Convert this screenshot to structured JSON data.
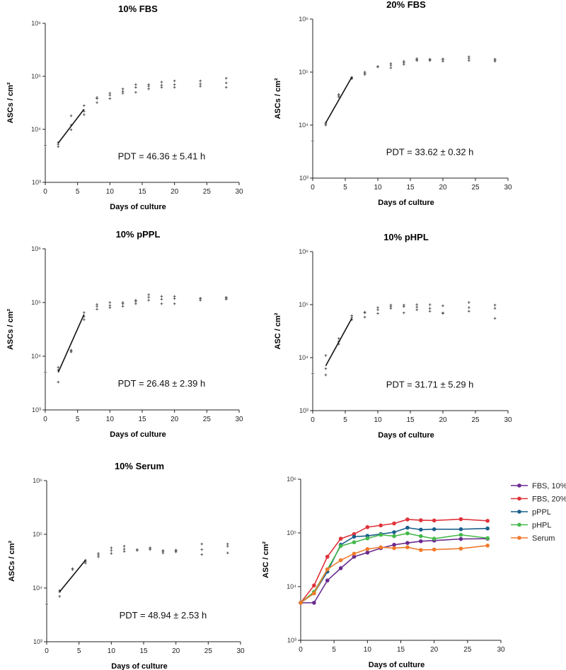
{
  "chart_data": [
    {
      "type": "scatter",
      "title": "10% FBS",
      "xlabel": "Days of culture",
      "ylabel": "ASCs / cm²",
      "xlim": [
        0,
        30
      ],
      "ylim": [
        1000,
        1000000
      ],
      "yscale": "log",
      "xticks": [
        "0",
        "5",
        "10",
        "15",
        "20",
        "25",
        "30"
      ],
      "yticks": [
        "10³",
        "10⁴",
        "10⁵",
        "10⁶"
      ],
      "annotation": "PDT = 46.36 ± 5.41 h",
      "points": [
        [
          0,
          5000
        ],
        [
          2,
          4700
        ],
        [
          2,
          5200
        ],
        [
          2,
          5600
        ],
        [
          4,
          9800
        ],
        [
          4,
          12000
        ],
        [
          4,
          18000
        ],
        [
          6,
          19000
        ],
        [
          6,
          22000
        ],
        [
          6,
          28000
        ],
        [
          8,
          32000
        ],
        [
          8,
          38000
        ],
        [
          8,
          40000
        ],
        [
          10,
          38000
        ],
        [
          10,
          44000
        ],
        [
          10,
          48000
        ],
        [
          12,
          48000
        ],
        [
          12,
          52000
        ],
        [
          12,
          58000
        ],
        [
          14,
          50000
        ],
        [
          14,
          62000
        ],
        [
          14,
          70000
        ],
        [
          16,
          58000
        ],
        [
          16,
          65000
        ],
        [
          16,
          70000
        ],
        [
          18,
          62000
        ],
        [
          18,
          68000
        ],
        [
          18,
          78000
        ],
        [
          20,
          62000
        ],
        [
          20,
          70000
        ],
        [
          20,
          82000
        ],
        [
          24,
          65000
        ],
        [
          24,
          72000
        ],
        [
          24,
          82000
        ],
        [
          28,
          62000
        ],
        [
          28,
          75000
        ],
        [
          28,
          92000
        ]
      ],
      "fit_line": [
        [
          2,
          5500
        ],
        [
          6,
          24000
        ]
      ]
    },
    {
      "type": "scatter",
      "title": "20% FBS",
      "xlabel": "Days of culture",
      "ylabel": "ASCs / cm²",
      "xlim": [
        0,
        30
      ],
      "ylim": [
        1000,
        1000000
      ],
      "yscale": "log",
      "xticks": [
        "0",
        "5",
        "10",
        "15",
        "20",
        "25",
        "30"
      ],
      "yticks": [
        "10³",
        "10⁴",
        "10⁵",
        "10⁶"
      ],
      "annotation": "PDT = 33.62 ± 0.32 h",
      "points": [
        [
          0,
          5000
        ],
        [
          2,
          10000
        ],
        [
          2,
          10500
        ],
        [
          2,
          11000
        ],
        [
          4,
          34000
        ],
        [
          4,
          36000
        ],
        [
          4,
          38000
        ],
        [
          6,
          75000
        ],
        [
          6,
          78000
        ],
        [
          6,
          80000
        ],
        [
          8,
          90000
        ],
        [
          8,
          95000
        ],
        [
          8,
          100000
        ],
        [
          10,
          125000
        ],
        [
          10,
          128000
        ],
        [
          12,
          120000
        ],
        [
          12,
          135000
        ],
        [
          12,
          145000
        ],
        [
          14,
          140000
        ],
        [
          14,
          150000
        ],
        [
          14,
          160000
        ],
        [
          16,
          165000
        ],
        [
          16,
          172000
        ],
        [
          16,
          180000
        ],
        [
          18,
          165000
        ],
        [
          18,
          170000
        ],
        [
          18,
          175000
        ],
        [
          20,
          160000
        ],
        [
          20,
          170000
        ],
        [
          20,
          178000
        ],
        [
          24,
          165000
        ],
        [
          24,
          180000
        ],
        [
          24,
          195000
        ],
        [
          28,
          160000
        ],
        [
          28,
          168000
        ],
        [
          28,
          175000
        ]
      ],
      "fit_line": [
        [
          2,
          11000
        ],
        [
          6,
          80000
        ]
      ]
    },
    {
      "type": "scatter",
      "title": "10% pPPL",
      "xlabel": "Days of culture",
      "ylabel": "ASCs / cm²",
      "xlim": [
        0,
        30
      ],
      "ylim": [
        1000,
        1000000
      ],
      "yscale": "log",
      "xticks": [
        "0",
        "5",
        "10",
        "15",
        "20",
        "25",
        "30"
      ],
      "yticks": [
        "10³",
        "10⁴",
        "10⁵",
        "10⁶"
      ],
      "annotation": "PDT = 26.48 ± 2.39 h",
      "points": [
        [
          0,
          5000
        ],
        [
          2,
          3300
        ],
        [
          2,
          5500
        ],
        [
          2,
          6200
        ],
        [
          4,
          12000
        ],
        [
          4,
          12500
        ],
        [
          4,
          13000
        ],
        [
          6,
          48000
        ],
        [
          6,
          55000
        ],
        [
          6,
          65000
        ],
        [
          8,
          75000
        ],
        [
          8,
          85000
        ],
        [
          8,
          92000
        ],
        [
          10,
          80000
        ],
        [
          10,
          88000
        ],
        [
          10,
          100000
        ],
        [
          12,
          85000
        ],
        [
          12,
          95000
        ],
        [
          12,
          100000
        ],
        [
          14,
          95000
        ],
        [
          14,
          105000
        ],
        [
          14,
          110000
        ],
        [
          16,
          110000
        ],
        [
          16,
          125000
        ],
        [
          16,
          140000
        ],
        [
          18,
          95000
        ],
        [
          18,
          115000
        ],
        [
          18,
          130000
        ],
        [
          20,
          95000
        ],
        [
          20,
          118000
        ],
        [
          20,
          130000
        ],
        [
          24,
          110000
        ],
        [
          24,
          118000
        ],
        [
          24,
          120000
        ],
        [
          28,
          115000
        ],
        [
          28,
          120000
        ],
        [
          28,
          125000
        ]
      ],
      "fit_line": [
        [
          2,
          5000
        ],
        [
          6,
          60000
        ]
      ]
    },
    {
      "type": "scatter",
      "title": "10% pHPL",
      "xlabel": "Days of culture",
      "ylabel": "ASC / cm²",
      "xlim": [
        0,
        30
      ],
      "ylim": [
        1000,
        1000000
      ],
      "yscale": "log",
      "xticks": [
        "0",
        "5",
        "10",
        "15",
        "20",
        "25",
        "30"
      ],
      "yticks": [
        "10³",
        "10⁴",
        "10⁵",
        "10⁶"
      ],
      "annotation": "PDT = 31.71 ± 5.29 h",
      "points": [
        [
          0,
          5000
        ],
        [
          2,
          4700
        ],
        [
          2,
          6200
        ],
        [
          2,
          11000
        ],
        [
          4,
          18000
        ],
        [
          4,
          20000
        ],
        [
          4,
          23000
        ],
        [
          6,
          52000
        ],
        [
          6,
          57000
        ],
        [
          6,
          62000
        ],
        [
          8,
          58000
        ],
        [
          8,
          70000
        ],
        [
          8,
          72000
        ],
        [
          10,
          68000
        ],
        [
          10,
          80000
        ],
        [
          10,
          88000
        ],
        [
          12,
          85000
        ],
        [
          12,
          92000
        ],
        [
          12,
          98000
        ],
        [
          14,
          70000
        ],
        [
          14,
          92000
        ],
        [
          14,
          98000
        ],
        [
          16,
          80000
        ],
        [
          16,
          90000
        ],
        [
          16,
          100000
        ],
        [
          18,
          75000
        ],
        [
          18,
          85000
        ],
        [
          18,
          100000
        ],
        [
          20,
          68000
        ],
        [
          20,
          70000
        ],
        [
          20,
          95000
        ],
        [
          24,
          75000
        ],
        [
          24,
          88000
        ],
        [
          24,
          110000
        ],
        [
          28,
          55000
        ],
        [
          28,
          85000
        ],
        [
          28,
          98000
        ]
      ],
      "fit_line": [
        [
          2,
          7000
        ],
        [
          6,
          55000
        ]
      ]
    },
    {
      "type": "scatter",
      "title": "10% Serum",
      "xlabel": "Days of culture",
      "ylabel": "ASCs / cm²",
      "xlim": [
        0,
        30
      ],
      "ylim": [
        1000,
        1000000
      ],
      "yscale": "log",
      "xticks": [
        "0",
        "5",
        "10",
        "15",
        "20",
        "25",
        "30"
      ],
      "yticks": [
        "10³",
        "10⁴",
        "10⁵",
        "10⁶"
      ],
      "annotation": "PDT = 48.94 ± 2.53 h",
      "points": [
        [
          0,
          5000
        ],
        [
          2,
          7000
        ],
        [
          2,
          8500
        ],
        [
          2,
          9000
        ],
        [
          4,
          22000
        ],
        [
          4,
          23000
        ],
        [
          6,
          29000
        ],
        [
          6,
          31000
        ],
        [
          6,
          33000
        ],
        [
          8,
          38000
        ],
        [
          8,
          41000
        ],
        [
          8,
          44000
        ],
        [
          10,
          44000
        ],
        [
          10,
          50000
        ],
        [
          10,
          56000
        ],
        [
          12,
          48000
        ],
        [
          12,
          53000
        ],
        [
          12,
          60000
        ],
        [
          14,
          50000
        ],
        [
          14,
          52000
        ],
        [
          16,
          52000
        ],
        [
          16,
          55000
        ],
        [
          16,
          56000
        ],
        [
          18,
          45000
        ],
        [
          18,
          48000
        ],
        [
          18,
          50000
        ],
        [
          20,
          47000
        ],
        [
          20,
          49000
        ],
        [
          20,
          51000
        ],
        [
          24,
          42000
        ],
        [
          24,
          52000
        ],
        [
          24,
          66000
        ],
        [
          28,
          45000
        ],
        [
          28,
          60000
        ],
        [
          28,
          66000
        ]
      ],
      "fit_line": [
        [
          2,
          8500
        ],
        [
          6,
          33000
        ]
      ]
    },
    {
      "type": "line",
      "title": "",
      "xlabel": "Days of culture",
      "ylabel": "ASC / cm²",
      "xlim": [
        0,
        30
      ],
      "ylim": [
        1000,
        1000000
      ],
      "yscale": "log",
      "xticks": [
        "0",
        "5",
        "10",
        "15",
        "20",
        "25",
        "30"
      ],
      "yticks": [
        "10³",
        "10⁴",
        "10⁵",
        "10⁶"
      ],
      "legend_position": "right",
      "x": [
        0,
        2,
        4,
        6,
        8,
        10,
        12,
        14,
        16,
        18,
        20,
        24,
        28
      ],
      "series": [
        {
          "name": "FBS, 10%",
          "color": "#6a2a8f",
          "values": [
            5000,
            5000,
            13000,
            22000,
            36000,
            43000,
            52000,
            60000,
            65000,
            70000,
            72000,
            77000,
            78000
          ]
        },
        {
          "name": "FBS, 20%",
          "color": "#e0323a",
          "values": [
            5000,
            10500,
            36000,
            78000,
            95000,
            128000,
            138000,
            150000,
            178000,
            172000,
            170000,
            180000,
            168000
          ]
        },
        {
          "name": "pPPL",
          "color": "#1b5f8c",
          "values": [
            5000,
            7500,
            19000,
            60000,
            85000,
            88000,
            95000,
            103000,
            125000,
            115000,
            117000,
            117000,
            121000
          ]
        },
        {
          "name": "pHPL",
          "color": "#45b84a",
          "values": [
            5000,
            8000,
            21000,
            57000,
            67000,
            79000,
            92000,
            87000,
            98000,
            87000,
            78000,
            92000,
            80000
          ]
        },
        {
          "name": "Serum",
          "color": "#f07a2a",
          "values": [
            5000,
            7500,
            21000,
            31000,
            41000,
            50000,
            54000,
            52000,
            54000,
            48000,
            49000,
            51000,
            58000
          ]
        }
      ]
    }
  ]
}
